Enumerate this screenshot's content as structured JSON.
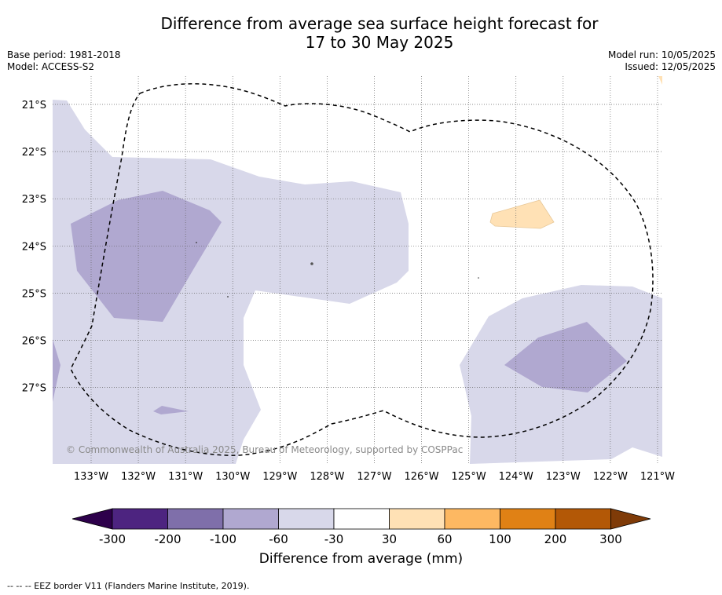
{
  "title_line1": "Difference from average sea surface height forecast for",
  "title_line2": "17 to 30 May 2025",
  "base_period": "Base period: 1981-2018",
  "model": "Model: ACCESS-S2",
  "model_run": "Model run: 10/05/2025",
  "issued": "Issued: 12/05/2025",
  "copyright": "© Commonwealth of Australia 2025, Bureau of Meteorology, supported by COSPPac",
  "lat_labels": [
    "21°S",
    "22°S",
    "23°S",
    "24°S",
    "25°S",
    "26°S",
    "27°S"
  ],
  "lon_labels": [
    "133°W",
    "132°W",
    "131°W",
    "130°W",
    "129°W",
    "128°W",
    "127°W",
    "126°W",
    "125°W",
    "124°W",
    "123°W",
    "122°W",
    "121°W"
  ],
  "colorbar": {
    "label": "Difference from average (mm)",
    "ticks": [
      "-300",
      "-200",
      "-100",
      "-60",
      "-30",
      "30",
      "60",
      "100",
      "200",
      "300"
    ],
    "colors": [
      "#4d2480",
      "#7f6faa",
      "#b0a8d0",
      "#d8d8ea",
      "#ffffff",
      "#ffe1b5",
      "#fdb862",
      "#e08115",
      "#b35806"
    ],
    "under_color": "#2d004b",
    "over_color": "#7f3b08"
  },
  "footer": "-- -- -- EEZ border V11 (Flanders Marine Institute, 2019)."
}
